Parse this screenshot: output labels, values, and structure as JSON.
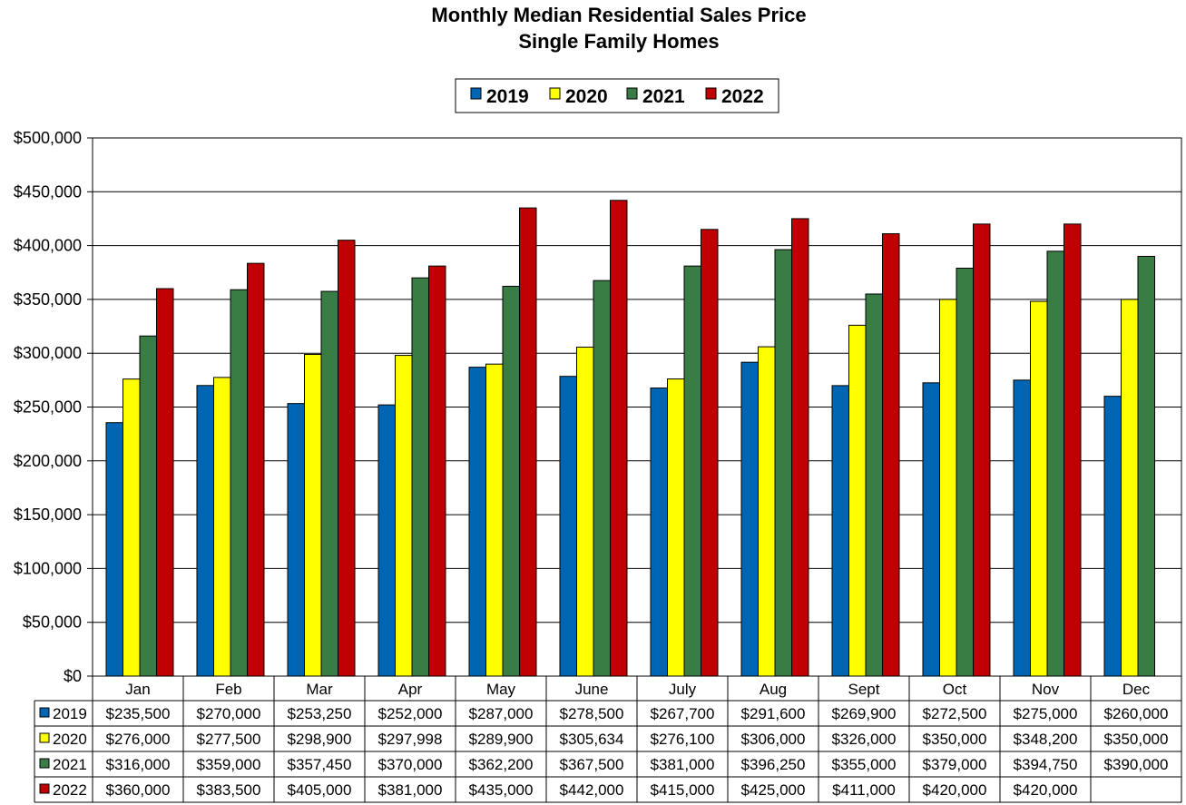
{
  "chart_data": {
    "type": "bar",
    "title": "Monthly Median Residential Sales Price",
    "subtitle": "Single Family Homes",
    "categories": [
      "Jan",
      "Feb",
      "Mar",
      "Apr",
      "May",
      "June",
      "July",
      "Aug",
      "Sept",
      "Oct",
      "Nov",
      "Dec"
    ],
    "ylim": [
      0,
      500000
    ],
    "yticks": [
      0,
      50000,
      100000,
      150000,
      200000,
      250000,
      300000,
      350000,
      400000,
      450000,
      500000
    ],
    "ytick_labels": [
      "$0",
      "$50,000",
      "$100,000",
      "$150,000",
      "$200,000",
      "$250,000",
      "$300,000",
      "$350,000",
      "$400,000",
      "$450,000",
      "$500,000"
    ],
    "grid": true,
    "legend_position": "top",
    "series": [
      {
        "name": "2019",
        "color": "#0066B3",
        "values": [
          235500,
          270000,
          253250,
          252000,
          287000,
          278500,
          267700,
          291600,
          269900,
          272500,
          275000,
          260000
        ],
        "labels": [
          "$235,500",
          "$270,000",
          "$253,250",
          "$252,000",
          "$287,000",
          "$278,500",
          "$267,700",
          "$291,600",
          "$269,900",
          "$272,500",
          "$275,000",
          "$260,000"
        ]
      },
      {
        "name": "2020",
        "color": "#FFFF00",
        "values": [
          276000,
          277500,
          298900,
          297998,
          289900,
          305634,
          276100,
          306000,
          326000,
          350000,
          348200,
          350000
        ],
        "labels": [
          "$276,000",
          "$277,500",
          "$298,900",
          "$297,998",
          "$289,900",
          "$305,634",
          "$276,100",
          "$306,000",
          "$326,000",
          "$350,000",
          "$348,200",
          "$350,000"
        ]
      },
      {
        "name": "2021",
        "color": "#3A7D44",
        "values": [
          316000,
          359000,
          357450,
          370000,
          362200,
          367500,
          381000,
          396250,
          355000,
          379000,
          394750,
          390000
        ],
        "labels": [
          "$316,000",
          "$359,000",
          "$357,450",
          "$370,000",
          "$362,200",
          "$367,500",
          "$381,000",
          "$396,250",
          "$355,000",
          "$379,000",
          "$394,750",
          "$390,000"
        ]
      },
      {
        "name": "2022",
        "color": "#C00000",
        "values": [
          360000,
          383500,
          405000,
          381000,
          435000,
          442000,
          415000,
          425000,
          411000,
          420000,
          420000,
          null
        ],
        "labels": [
          "$360,000",
          "$383,500",
          "$405,000",
          "$381,000",
          "$435,000",
          "$442,000",
          "$415,000",
          "$425,000",
          "$411,000",
          "$420,000",
          "$420,000",
          ""
        ]
      }
    ]
  }
}
